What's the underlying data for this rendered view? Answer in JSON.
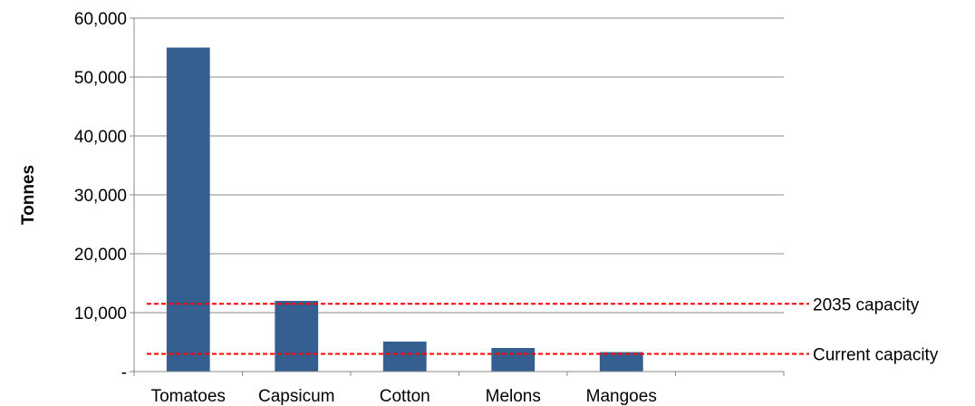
{
  "chart_data": {
    "type": "bar",
    "title": "",
    "xlabel": "",
    "ylabel": "Tonnes",
    "ylim": [
      0,
      60000
    ],
    "yticks": [
      0,
      10000,
      20000,
      30000,
      40000,
      50000,
      60000
    ],
    "ytick_labels": [
      "-",
      "10,000",
      "20,000",
      "30,000",
      "40,000",
      "50,000",
      "60,000"
    ],
    "grid": "horizontal",
    "category_slots": 6,
    "categories": [
      "Tomatoes",
      "Capsicum",
      "Cotton",
      "Melons",
      "Mangoes"
    ],
    "values": [
      55000,
      12000,
      5100,
      4000,
      3300
    ],
    "bar_color": "#365F91",
    "reference_lines": [
      {
        "label": "2035 capacity",
        "value": 11500,
        "color": "#FF0000",
        "style": "dashed"
      },
      {
        "label": "Current capacity",
        "value": 3000,
        "color": "#FF0000",
        "style": "dashed"
      }
    ]
  }
}
